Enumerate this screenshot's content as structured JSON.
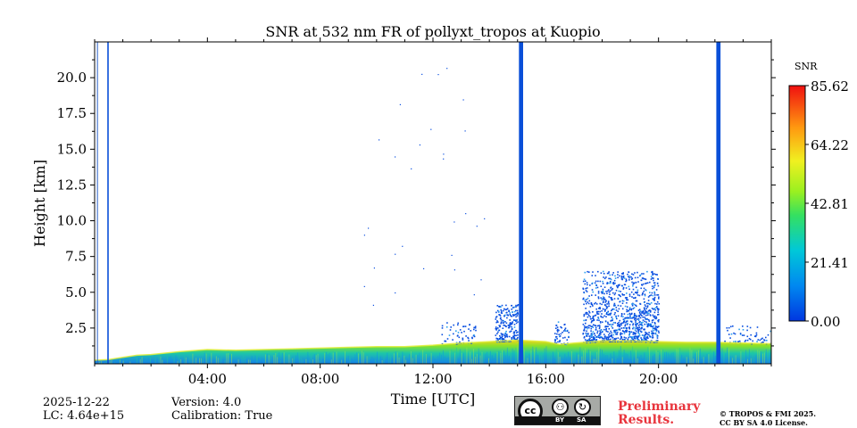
{
  "chart_data": {
    "type": "heatmap",
    "title": "SNR at 532 nm FR of pollyxt_tropos at Kuopio",
    "xlabel": "Time [UTC]",
    "ylabel": "Height [km]",
    "xlim_hours": [
      0,
      24
    ],
    "ylim_km": [
      0,
      22.5
    ],
    "x_ticks": [
      {
        "hours": 4,
        "label": "04:00"
      },
      {
        "hours": 8,
        "label": "08:00"
      },
      {
        "hours": 12,
        "label": "12:00"
      },
      {
        "hours": 16,
        "label": "16:00"
      },
      {
        "hours": 20,
        "label": "20:00"
      }
    ],
    "y_ticks": [
      {
        "km": 2.5,
        "label": "2.5"
      },
      {
        "km": 5.0,
        "label": "5.0"
      },
      {
        "km": 7.5,
        "label": "7.5"
      },
      {
        "km": 10.0,
        "label": "10.0"
      },
      {
        "km": 12.5,
        "label": "12.5"
      },
      {
        "km": 15.0,
        "label": "15.0"
      },
      {
        "km": 17.5,
        "label": "17.5"
      },
      {
        "km": 20.0,
        "label": "20.0"
      }
    ],
    "colorbar": {
      "label": "SNR",
      "min": 0.0,
      "max": 85.62,
      "tick_labels": [
        "85.62",
        "64.22",
        "42.81",
        "21.41",
        "0.00"
      ],
      "tick_values": [
        85.62,
        64.22,
        42.81,
        21.41,
        0.0
      ]
    },
    "boundary_layer_km": [
      [
        0.0,
        0.25
      ],
      [
        0.5,
        0.3
      ],
      [
        1.0,
        0.45
      ],
      [
        1.5,
        0.6
      ],
      [
        2.0,
        0.65
      ],
      [
        3.0,
        0.85
      ],
      [
        4.0,
        1.0
      ],
      [
        5.0,
        0.95
      ],
      [
        6.0,
        1.0
      ],
      [
        7.0,
        1.05
      ],
      [
        8.0,
        1.1
      ],
      [
        9.0,
        1.15
      ],
      [
        10.0,
        1.2
      ],
      [
        11.0,
        1.2
      ],
      [
        12.0,
        1.3
      ],
      [
        13.0,
        1.45
      ],
      [
        14.0,
        1.55
      ],
      [
        15.0,
        1.65
      ],
      [
        16.0,
        1.55
      ],
      [
        16.5,
        1.35
      ],
      [
        17.0,
        1.45
      ],
      [
        18.0,
        1.6
      ],
      [
        19.0,
        1.6
      ],
      [
        20.0,
        1.55
      ],
      [
        21.0,
        1.5
      ],
      [
        22.0,
        1.5
      ],
      [
        23.0,
        1.45
      ],
      [
        24.0,
        1.4
      ]
    ],
    "gap_columns_hours": [
      [
        0.45,
        0.5
      ],
      [
        15.05,
        15.2
      ],
      [
        22.05,
        22.2
      ]
    ],
    "thin_lines_hours": [
      0.1
    ]
  },
  "footer": {
    "date": "2025-12-22",
    "lc": "LC: 4.64e+15",
    "version": "Version: 4.0",
    "calibration": "Calibration: True",
    "preliminary_line1": "Preliminary",
    "preliminary_line2": "Results.",
    "copyright_line1": "© TROPOS & FMI 2025.",
    "copyright_line2": "CC BY SA 4.0 License.",
    "license_badge": {
      "cc": "cc",
      "by": "BY",
      "sa": "SA"
    }
  }
}
